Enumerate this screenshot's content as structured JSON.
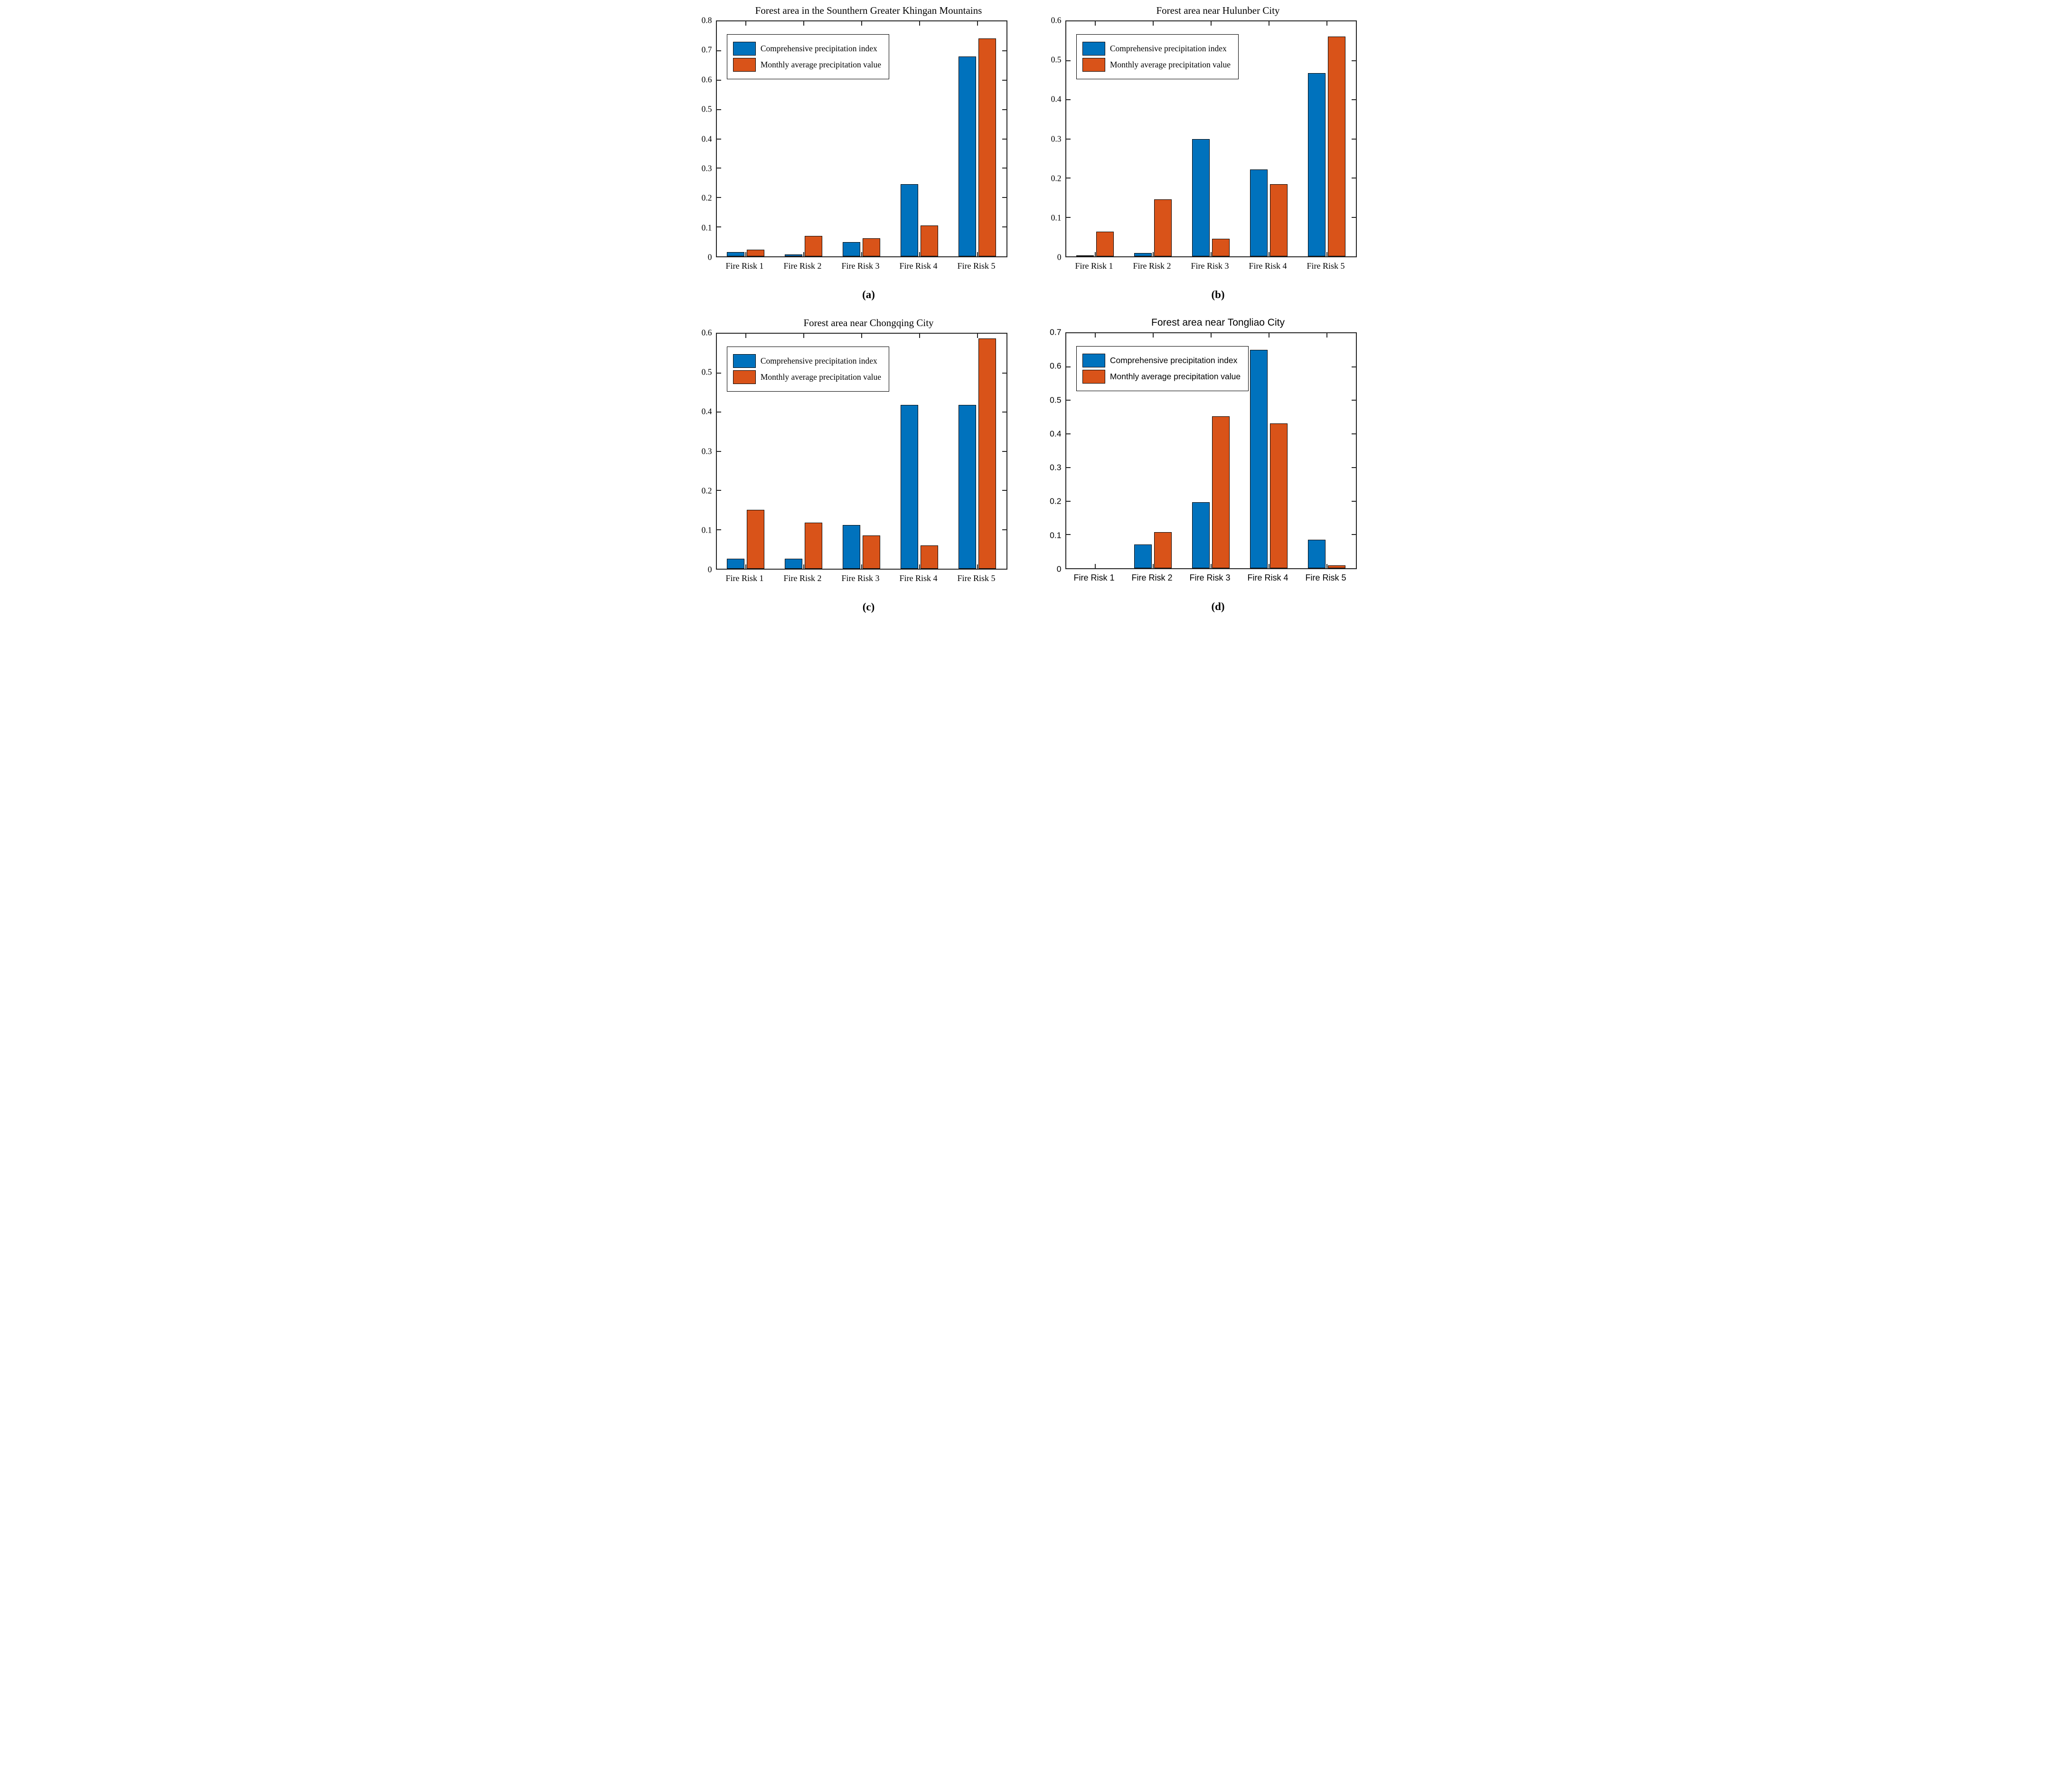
{
  "figure": {
    "background": "#ffffff",
    "axes_color": "#262626"
  },
  "colors": {
    "series1": "#0072BD",
    "series2": "#D95319",
    "bar_edge": "#000000"
  },
  "legend": {
    "series1_label": "Comprehensive precipitation index",
    "series2_label": "Monthly average precipitation value",
    "position": "top-left"
  },
  "chart_data": [
    {
      "type": "bar",
      "title": "Forest area in the Sounthern Greater Khingan Mountains",
      "caption": "(a)",
      "font": "serif",
      "grid": false,
      "legend_position": "top-left",
      "xlabel": "",
      "ylabel": "",
      "ylim": [
        0,
        0.8
      ],
      "ytick_step": 0.1,
      "categories": [
        "Fire Risk 1",
        "Fire Risk 2",
        "Fire Risk 3",
        "Fire Risk 4",
        "Fire Risk 5"
      ],
      "series": [
        {
          "name": "Comprehensive precipitation index",
          "color": "#0072BD",
          "values": [
            0.015,
            0.007,
            0.049,
            0.246,
            0.681
          ]
        },
        {
          "name": "Monthly average precipitation value",
          "color": "#D95319",
          "values": [
            0.022,
            0.069,
            0.061,
            0.105,
            0.742
          ]
        }
      ]
    },
    {
      "type": "bar",
      "title": "Forest area near Hulunber City",
      "caption": "(b)",
      "font": "serif",
      "grid": false,
      "legend_position": "top-left",
      "xlabel": "",
      "ylabel": "",
      "ylim": [
        0,
        0.6
      ],
      "ytick_step": 0.1,
      "categories": [
        "Fire Risk 1",
        "Fire Risk 2",
        "Fire Risk 3",
        "Fire Risk 4",
        "Fire Risk 5"
      ],
      "series": [
        {
          "name": "Comprehensive precipitation index",
          "color": "#0072BD",
          "values": [
            0.003,
            0.008,
            0.3,
            0.222,
            0.468
          ]
        },
        {
          "name": "Monthly average precipitation value",
          "color": "#D95319",
          "values": [
            0.063,
            0.146,
            0.045,
            0.184,
            0.561
          ]
        }
      ]
    },
    {
      "type": "bar",
      "title": "Forest area near Chongqing City",
      "caption": "(c)",
      "font": "serif",
      "grid": false,
      "legend_position": "top-left",
      "xlabel": "",
      "ylabel": "",
      "ylim": [
        0,
        0.6
      ],
      "ytick_step": 0.1,
      "categories": [
        "Fire Risk 1",
        "Fire Risk 2",
        "Fire Risk 3",
        "Fire Risk 4",
        "Fire Risk 5"
      ],
      "series": [
        {
          "name": "Comprehensive precipitation index",
          "color": "#0072BD",
          "values": [
            0.026,
            0.026,
            0.112,
            0.418,
            0.418
          ]
        },
        {
          "name": "Monthly average precipitation value",
          "color": "#D95319",
          "values": [
            0.15,
            0.118,
            0.085,
            0.059,
            0.588
          ]
        }
      ]
    },
    {
      "type": "bar",
      "title": "Forest area near Tongliao City",
      "caption": "(d)",
      "font": "sans",
      "grid": false,
      "legend_position": "top-left",
      "xlabel": "",
      "ylabel": "",
      "ylim": [
        0,
        0.7
      ],
      "ytick_step": 0.1,
      "categories": [
        "Fire Risk 1",
        "Fire Risk 2",
        "Fire Risk 3",
        "Fire Risk 4",
        "Fire Risk 5"
      ],
      "series": [
        {
          "name": "Comprehensive precipitation index",
          "color": "#0072BD",
          "values": [
            0,
            0.071,
            0.196,
            0.65,
            0.085
          ]
        },
        {
          "name": "Monthly average precipitation value",
          "color": "#D95319",
          "values": [
            0,
            0.107,
            0.453,
            0.432,
            0.008
          ]
        }
      ]
    }
  ]
}
